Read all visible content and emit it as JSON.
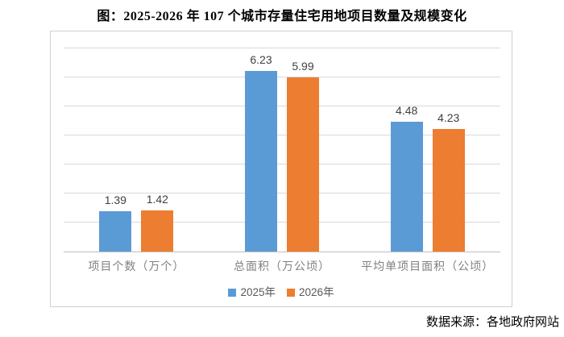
{
  "title": "图：2025-2026 年 107 个城市存量住宅用地项目数量及规模变化",
  "source": "数据来源：各地政府网站",
  "colors": {
    "series_2025": "#5B9BD5",
    "series_2026": "#ED7D31",
    "gridline": "#D9D9D9",
    "axis_line": "#BFBFBF",
    "value_label": "#404040",
    "category_label": "#818181",
    "legend_text": "#595959",
    "title_text": "#000000"
  },
  "chart_data": {
    "type": "bar",
    "title": "图：2025-2026 年 107 个城市存量住宅用地项目数量及规模变化",
    "categories": [
      "项目个数（万个）",
      "总面积（万公顷）",
      "平均单项目面积（公顷）"
    ],
    "series": [
      {
        "name": "2025年",
        "color": "#5B9BD5",
        "values": [
          1.39,
          6.23,
          4.48
        ]
      },
      {
        "name": "2026年",
        "color": "#ED7D31",
        "values": [
          1.42,
          5.99,
          4.23
        ]
      }
    ],
    "value_labels": [
      "1.39",
      "1.42",
      "6.23",
      "5.99",
      "4.48",
      "4.23"
    ],
    "xlabel": "",
    "ylabel": "",
    "ylim": [
      0,
      7
    ],
    "grid_step": 1,
    "grid": true,
    "y_axis_labels_visible": false,
    "legend_position": "bottom",
    "source": "数据来源：各地政府网站"
  }
}
